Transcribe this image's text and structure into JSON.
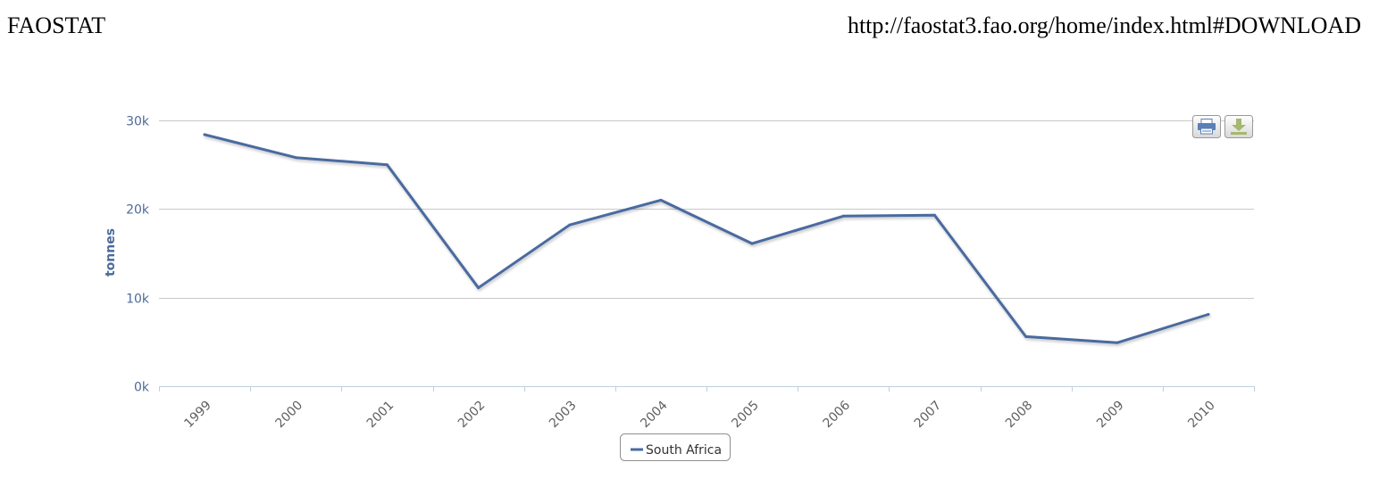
{
  "header": {
    "source_label": "FAOSTAT",
    "source_url": "http://faostat3.fao.org/home/index.html#DOWNLOAD"
  },
  "toolbar": {
    "print_icon": "printer-icon",
    "download_icon": "download-icon"
  },
  "chart_data": {
    "type": "line",
    "categories": [
      "1999",
      "2000",
      "2001",
      "2002",
      "2003",
      "2004",
      "2005",
      "2006",
      "2007",
      "2008",
      "2009",
      "2010"
    ],
    "series": [
      {
        "name": "South Africa",
        "color": "#4a6aa0",
        "values": [
          28400,
          25800,
          25000,
          11100,
          18200,
          21000,
          16100,
          19200,
          19300,
          5600,
          4900,
          8100
        ]
      }
    ],
    "yticks": [
      "0k",
      "10k",
      "20k",
      "30k"
    ],
    "ylabel": "tonnes",
    "ylim": [
      0,
      30000
    ],
    "grid": true,
    "legend": "bottom-center"
  }
}
